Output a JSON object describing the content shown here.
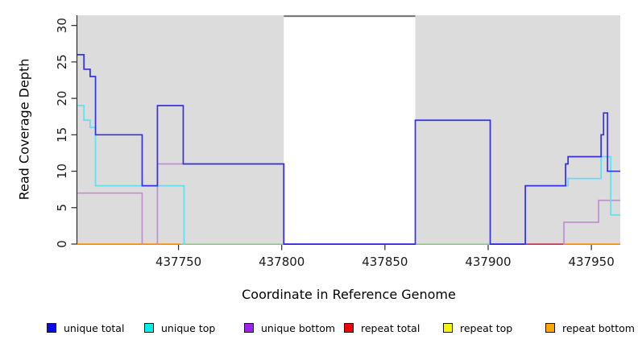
{
  "chart_data": {
    "type": "line-step",
    "title": "",
    "xlabel": "Coordinate in Reference Genome",
    "ylabel": "Read Coverage Depth",
    "xlim": [
      437701,
      437964
    ],
    "ylim": [
      0,
      31.4
    ],
    "grid": false,
    "plot_bg_color": "#dcdcdc",
    "gap_bg_color": "#ffffff",
    "axis_color": "#2b2b2b",
    "gap_region": {
      "x0": 437801,
      "x1": 437864.7,
      "marker_color": "#7a7a7a"
    },
    "x_ticks": [
      {
        "value": 437750,
        "label": "437750"
      },
      {
        "value": 437800,
        "label": "437800"
      },
      {
        "value": 437850,
        "label": "437850"
      },
      {
        "value": 437900,
        "label": "437900"
      },
      {
        "value": 437950,
        "label": "437950"
      }
    ],
    "y_ticks": [
      {
        "value": 0,
        "label": "0"
      },
      {
        "value": 5,
        "label": "5"
      },
      {
        "value": 10,
        "label": "10"
      },
      {
        "value": 15,
        "label": "15"
      },
      {
        "value": 20,
        "label": "20"
      },
      {
        "value": 25,
        "label": "25"
      },
      {
        "value": 30,
        "label": "30"
      }
    ],
    "series": [
      {
        "name": "unique total",
        "line_color": "#362ee8",
        "paths": [
          [
            [
              437701,
              437704.2,
              26
            ],
            [
              437704.2,
              437707.2,
              24
            ],
            [
              437707.2,
              437709.8,
              23
            ],
            [
              437709.8,
              437732.4,
              15
            ],
            [
              437732.4,
              437739.8,
              8
            ],
            [
              437739.8,
              437752.3,
              19
            ],
            [
              437752.3,
              437801,
              11
            ],
            [
              437801,
              437864.7,
              0
            ],
            [
              437864.7,
              437901,
              17
            ],
            [
              437901,
              437918,
              0
            ],
            [
              437918,
              437937.5,
              8
            ],
            [
              437937.5,
              437938.7,
              11
            ],
            [
              437938.7,
              437954.7,
              12
            ],
            [
              437954.7,
              437955.9,
              15
            ],
            [
              437955.9,
              437957.8,
              18
            ],
            [
              437957.8,
              437964,
              10
            ]
          ]
        ]
      },
      {
        "name": "unique top",
        "line_color": "#5fe0ec",
        "paths": [
          [
            [
              437701,
              437704.2,
              19
            ],
            [
              437704.2,
              437707.2,
              17
            ],
            [
              437707.2,
              437709.8,
              16
            ],
            [
              437709.8,
              437752.7,
              8
            ],
            [
              437752.7,
              437753.2,
              0
            ]
          ],
          [
            [
              437917.7,
              437918,
              0
            ],
            [
              437918,
              437938.7,
              8
            ],
            [
              437938.7,
              437954.7,
              9
            ],
            [
              437954.7,
              437959.4,
              12
            ],
            [
              437959.4,
              437964,
              4
            ]
          ]
        ]
      },
      {
        "name": "unique bottom",
        "line_color": "#c08fd0",
        "paths": [
          [
            [
              437701,
              437732.4,
              7
            ],
            [
              437732.4,
              437732.8,
              0
            ]
          ],
          [
            [
              437739.4,
              437739.8,
              0
            ],
            [
              437739.8,
              437801,
              11
            ],
            [
              437801,
              437801.4,
              0
            ]
          ],
          [
            [
              437936.3,
              437936.7,
              0
            ],
            [
              437936.7,
              437953.5,
              3
            ],
            [
              437953.5,
              437964,
              6
            ]
          ]
        ]
      },
      {
        "name": "repeat total",
        "line_color": "#c84b60",
        "paths": [
          [
            [
              437918,
              437936.7,
              0
            ]
          ]
        ]
      },
      {
        "name": "repeat top",
        "line_color": "#9cd89c",
        "paths": [
          [
            [
              437751,
              437801,
              0
            ]
          ],
          [
            [
              437864.7,
              437901,
              0
            ]
          ]
        ]
      },
      {
        "name": "repeat bottom",
        "line_color": "#ff9d1c",
        "paths": [
          [
            [
              437701,
              437751,
              0
            ]
          ],
          [
            [
              437936.7,
              437964,
              0
            ]
          ]
        ]
      }
    ],
    "draw_order": [
      4,
      3,
      5,
      2,
      1,
      0
    ],
    "legend": [
      {
        "label": "unique total",
        "swatch_color": "#0a0aee",
        "x": 58
      },
      {
        "label": "unique top",
        "swatch_color": "#00eeee",
        "x": 179
      },
      {
        "label": "unique bottom",
        "swatch_color": "#a020f0",
        "x": 303
      },
      {
        "label": "repeat total",
        "swatch_color": "#f00000",
        "x": 427
      },
      {
        "label": "repeat top",
        "swatch_color": "#f5f500",
        "x": 550
      },
      {
        "label": "repeat bottom",
        "swatch_color": "#ffa500",
        "x": 677
      }
    ]
  }
}
